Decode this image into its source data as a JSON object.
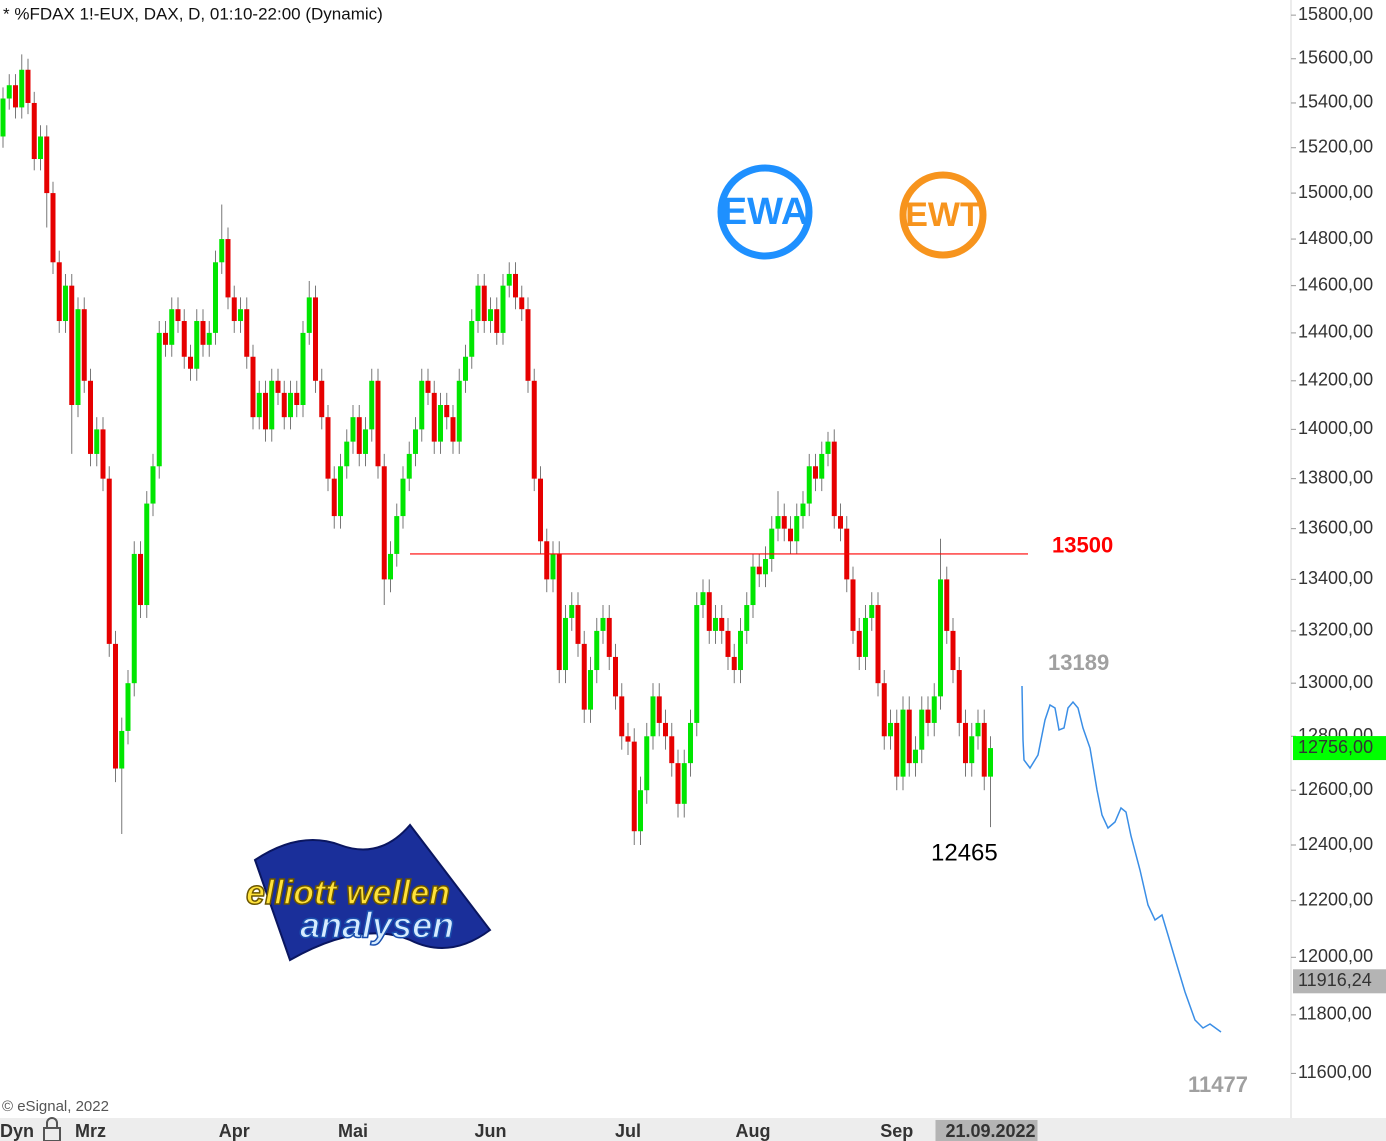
{
  "chart_data": {
    "type": "candlestick",
    "title": "* %FDAX 1!-EUX, DAX, D, 01:10-22:00 (Dynamic)",
    "source": "© eSignal, 2022",
    "x_axis_prefix": "Dyn",
    "log_scale": true,
    "grid": false,
    "up_color": "#00e600",
    "down_color": "#e60000",
    "ylim": [
      11460,
      15870
    ],
    "yticks": [
      {
        "value": 11600,
        "label": "11600,00"
      },
      {
        "value": 11800,
        "label": "11800,00"
      },
      {
        "value": 12000,
        "label": "12000,00"
      },
      {
        "value": 12200,
        "label": "12200,00"
      },
      {
        "value": 12400,
        "label": "12400,00"
      },
      {
        "value": 12600,
        "label": "12600,00"
      },
      {
        "value": 12800,
        "label": "12800,00"
      },
      {
        "value": 13000,
        "label": "13000,00"
      },
      {
        "value": 13200,
        "label": "13200,00"
      },
      {
        "value": 13400,
        "label": "13400,00"
      },
      {
        "value": 13600,
        "label": "13600,00"
      },
      {
        "value": 13800,
        "label": "13800,00"
      },
      {
        "value": 14000,
        "label": "14000,00"
      },
      {
        "value": 14200,
        "label": "14200,00"
      },
      {
        "value": 14400,
        "label": "14400,00"
      },
      {
        "value": 14600,
        "label": "14600,00"
      },
      {
        "value": 14800,
        "label": "14800,00"
      },
      {
        "value": 15000,
        "label": "15000,00"
      },
      {
        "value": 15200,
        "label": "15200,00"
      },
      {
        "value": 15400,
        "label": "15400,00"
      },
      {
        "value": 15600,
        "label": "15600,00"
      },
      {
        "value": 15800,
        "label": "15800,00"
      }
    ],
    "price_tags": [
      {
        "value": 12756,
        "label": "12756,00",
        "color": "#00ff00"
      },
      {
        "value": 11916.24,
        "label": "11916,24",
        "color": "#b4b4b4"
      }
    ],
    "level": {
      "value": 13500,
      "color": "#ff0000"
    },
    "annotations": [
      {
        "text": "13189",
        "color": "#a0a0a0"
      },
      {
        "text": "12465",
        "color": "#000000"
      },
      {
        "text": "11477",
        "color": "#a0a0a0"
      }
    ],
    "logos": {
      "ewa": "EWA",
      "ewt": "EWT",
      "line1": "elliott wellen",
      "line2": "analysen"
    },
    "categories": [
      null,
      null,
      null,
      null,
      null,
      null,
      null,
      null,
      null,
      null,
      null,
      null,
      null,
      null,
      "Mrz",
      null,
      null,
      null,
      null,
      null,
      null,
      null,
      null,
      null,
      null,
      null,
      null,
      null,
      null,
      null,
      null,
      null,
      null,
      null,
      null,
      null,
      null,
      "Apr",
      null,
      null,
      null,
      null,
      null,
      null,
      null,
      null,
      null,
      null,
      null,
      null,
      null,
      null,
      null,
      null,
      null,
      null,
      "Mai",
      null,
      null,
      null,
      null,
      null,
      null,
      null,
      null,
      null,
      null,
      null,
      null,
      null,
      null,
      null,
      null,
      null,
      null,
      null,
      null,
      null,
      "Jun",
      null,
      null,
      null,
      null,
      null,
      null,
      null,
      null,
      null,
      null,
      null,
      null,
      null,
      null,
      null,
      null,
      null,
      null,
      null,
      null,
      null,
      "Jul",
      null,
      null,
      null,
      null,
      null,
      null,
      null,
      null,
      null,
      null,
      null,
      null,
      null,
      null,
      null,
      null,
      null,
      null,
      null,
      "Aug",
      null,
      null,
      null,
      null,
      null,
      null,
      null,
      null,
      null,
      null,
      null,
      null,
      null,
      null,
      null,
      null,
      null,
      null,
      null,
      null,
      null,
      null,
      "Sep",
      null,
      null,
      null,
      null,
      null,
      null,
      null,
      null,
      null,
      null,
      null,
      null,
      null,
      null,
      "21.09.2022"
    ],
    "open": [
      15250,
      15420,
      15480,
      15380,
      15550,
      15400,
      15150,
      15250,
      15000,
      14700,
      14450,
      14600,
      14100,
      14500,
      14200,
      13900,
      14000,
      13800,
      13150,
      12680,
      12820,
      13000,
      13500,
      13300,
      13700,
      13850,
      14400,
      14350,
      14500,
      14450,
      14300,
      14250,
      14450,
      14350,
      14400,
      14700,
      14800,
      14550,
      14450,
      14500,
      14300,
      14050,
      14150,
      14000,
      14200,
      14150,
      14050,
      14150,
      14100,
      14400,
      14550,
      14200,
      14050,
      13800,
      13650,
      13850,
      13950,
      14050,
      13900,
      14000,
      14200,
      13850,
      13400,
      13500,
      13650,
      13800,
      13900,
      14000,
      14200,
      14150,
      13950,
      14100,
      14050,
      13950,
      14200,
      14300,
      14450,
      14600,
      14450,
      14500,
      14400,
      14600,
      14650,
      14550,
      14500,
      14200,
      13800,
      13550,
      13400,
      13500,
      13050,
      13250,
      13300,
      13150,
      12900,
      13050,
      13200,
      13250,
      13100,
      12950,
      12800,
      12780,
      12450,
      12600,
      12800,
      12950,
      12850,
      12800,
      12700,
      12550,
      12700,
      12850,
      13300,
      13350,
      13200,
      13250,
      13200,
      13100,
      13050,
      13200,
      13300,
      13450,
      13420,
      13480,
      13600,
      13650,
      13600,
      13550,
      13650,
      13700,
      13850,
      13800,
      13900,
      13950,
      13650,
      13600,
      13400,
      13200,
      13100,
      13250,
      13300,
      13000,
      12800,
      12850,
      12650,
      12900,
      12700,
      12750,
      12900,
      12850,
      12950,
      13400,
      13200,
      13050,
      12850,
      12700,
      12800,
      12850,
      12650
    ],
    "high": [
      15470,
      15530,
      15530,
      15620,
      15600,
      15450,
      15300,
      15300,
      15050,
      14750,
      14650,
      14650,
      14550,
      14550,
      14250,
      14050,
      14050,
      13850,
      13200,
      12870,
      13050,
      13550,
      13550,
      13750,
      13900,
      14450,
      14450,
      14550,
      14550,
      14500,
      14350,
      14500,
      14500,
      14450,
      14750,
      14950,
      14850,
      14600,
      14550,
      14550,
      14350,
      14200,
      14200,
      14250,
      14250,
      14200,
      14200,
      14200,
      14450,
      14620,
      14600,
      14250,
      14100,
      13850,
      13900,
      14000,
      14100,
      14100,
      14050,
      14250,
      14250,
      13900,
      13550,
      13700,
      13850,
      13950,
      14050,
      14250,
      14250,
      14200,
      14150,
      14150,
      14100,
      14250,
      14350,
      14500,
      14650,
      14650,
      14550,
      14550,
      14650,
      14700,
      14700,
      14600,
      14550,
      14250,
      13850,
      13600,
      13550,
      13550,
      13300,
      13350,
      13350,
      13200,
      13100,
      13250,
      13300,
      13300,
      13150,
      13000,
      12850,
      12830,
      12650,
      12850,
      13000,
      13000,
      12900,
      12850,
      12750,
      12750,
      12900,
      13350,
      13400,
      13400,
      13300,
      13300,
      13250,
      13150,
      13250,
      13350,
      13500,
      13500,
      13530,
      13650,
      13750,
      13700,
      13650,
      13700,
      13750,
      13900,
      13900,
      13950,
      13990,
      14000,
      13700,
      13650,
      13450,
      13250,
      13300,
      13350,
      13350,
      13050,
      12900,
      12900,
      12950,
      12950,
      12800,
      12950,
      12950,
      13000,
      13560,
      13450,
      13250,
      13100,
      12900,
      12850,
      12900,
      12900,
      12800
    ],
    "low": [
      15200,
      15370,
      15330,
      15330,
      15350,
      15100,
      15100,
      14850,
      14650,
      14400,
      14400,
      13900,
      14050,
      14150,
      13850,
      13850,
      13750,
      13100,
      12630,
      12440,
      12770,
      12950,
      13250,
      13250,
      13650,
      13800,
      14300,
      14300,
      14400,
      14250,
      14200,
      14200,
      14300,
      14300,
      14350,
      14650,
      14500,
      14400,
      14400,
      14250,
      14000,
      14000,
      13950,
      13950,
      14100,
      14000,
      14000,
      14050,
      14050,
      14350,
      14150,
      14000,
      13750,
      13600,
      13600,
      13800,
      13900,
      13850,
      13850,
      13950,
      13800,
      13300,
      13350,
      13450,
      13600,
      13750,
      13850,
      13950,
      14100,
      13900,
      13900,
      14000,
      13900,
      13900,
      14150,
      14250,
      14400,
      14400,
      14400,
      14350,
      14350,
      14550,
      14500,
      14450,
      14150,
      13750,
      13500,
      13350,
      13350,
      13000,
      13000,
      13200,
      13100,
      12850,
      12850,
      13000,
      13150,
      13050,
      12900,
      12750,
      12730,
      12400,
      12400,
      12550,
      12750,
      12800,
      12750,
      12650,
      12500,
      12500,
      12650,
      12800,
      13250,
      13150,
      13150,
      13150,
      13050,
      13000,
      13000,
      13150,
      13250,
      13370,
      13370,
      13430,
      13550,
      13550,
      13500,
      13500,
      13600,
      13650,
      13750,
      13750,
      13850,
      13600,
      13550,
      13350,
      13150,
      13050,
      13050,
      13200,
      12950,
      12750,
      12750,
      12600,
      12600,
      12650,
      12650,
      12700,
      12800,
      12800,
      12900,
      13150,
      13000,
      12800,
      12650,
      12650,
      12750,
      12600,
      12465
    ],
    "close": [
      15420,
      15480,
      15380,
      15550,
      15400,
      15150,
      15250,
      15000,
      14700,
      14450,
      14600,
      14100,
      14500,
      14200,
      13900,
      14000,
      13800,
      13150,
      12680,
      12820,
      13000,
      13500,
      13300,
      13700,
      13850,
      14400,
      14350,
      14500,
      14450,
      14300,
      14250,
      14450,
      14350,
      14400,
      14700,
      14800,
      14550,
      14450,
      14500,
      14300,
      14050,
      14150,
      14000,
      14200,
      14150,
      14050,
      14150,
      14100,
      14400,
      14550,
      14200,
      14050,
      13800,
      13650,
      13850,
      13950,
      14050,
      13900,
      14000,
      14200,
      13850,
      13400,
      13500,
      13650,
      13800,
      13900,
      14000,
      14200,
      14150,
      13950,
      14100,
      14050,
      13950,
      14200,
      14300,
      14450,
      14600,
      14450,
      14500,
      14400,
      14600,
      14650,
      14550,
      14500,
      14200,
      13800,
      13550,
      13400,
      13500,
      13050,
      13250,
      13300,
      13150,
      12900,
      13050,
      13200,
      13250,
      13100,
      12950,
      12800,
      12780,
      12450,
      12600,
      12800,
      12950,
      12850,
      12800,
      12700,
      12550,
      12700,
      12850,
      13300,
      13350,
      13200,
      13250,
      13200,
      13100,
      13050,
      13200,
      13300,
      13450,
      13420,
      13480,
      13600,
      13650,
      13600,
      13550,
      13650,
      13700,
      13850,
      13800,
      13900,
      13950,
      13650,
      13600,
      13400,
      13200,
      13100,
      13250,
      13300,
      13000,
      12800,
      12850,
      12650,
      12900,
      12700,
      12750,
      12900,
      12850,
      12950,
      13400,
      13200,
      13050,
      12850,
      12700,
      12800,
      12850,
      12650,
      12756
    ]
  }
}
